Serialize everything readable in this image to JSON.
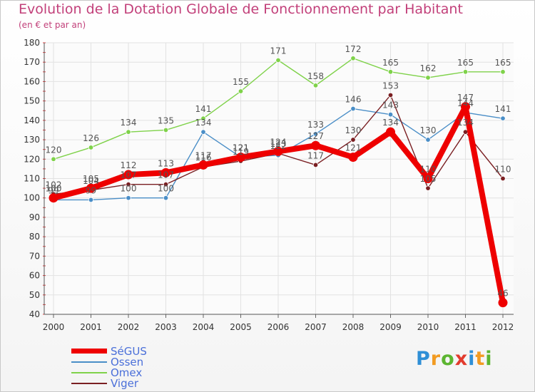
{
  "header": {
    "title": "Evolution de la Dotation Globale de Fonctionnement par Habitant",
    "subtitle": "(en € et par an)"
  },
  "logo": {
    "letters": [
      "P",
      "r",
      "o",
      "x",
      "i",
      "t",
      "i"
    ]
  },
  "chart_data": {
    "type": "line",
    "title": "Evolution de la Dotation Globale de Fonctionnement par Habitant",
    "ylabel": "(en € et par an)",
    "xlabel": "",
    "x": [
      "2000",
      "2001",
      "2002",
      "2003",
      "2004",
      "2005",
      "2006",
      "2007",
      "2008",
      "2009",
      "2010",
      "2011",
      "2012"
    ],
    "ylim": [
      40,
      180
    ],
    "yticks": [
      40,
      50,
      60,
      70,
      80,
      90,
      100,
      110,
      120,
      130,
      140,
      150,
      160,
      170,
      180
    ],
    "grid": true,
    "legend_position": "bottom-left",
    "series": [
      {
        "name": "SéGUS",
        "color": "#ee0000",
        "text_color": "#4a6fd9",
        "values": [
          100,
          105,
          112,
          113,
          117,
          121,
          124,
          127,
          121,
          134,
          110,
          147,
          46
        ],
        "labels": [
          "100",
          "105",
          "112",
          "113",
          "117",
          "121",
          "124",
          "127",
          "121",
          "134",
          "110",
          "147",
          "46"
        ]
      },
      {
        "name": "Ossen",
        "color": "#4a8ec7",
        "text_color": "#4a6fd9",
        "values": [
          99,
          99,
          100,
          100,
          134,
          121,
          122,
          133,
          146,
          143,
          130,
          144,
          141
        ],
        "labels": [
          "99",
          "99",
          "100",
          "100",
          "134",
          "121",
          "122",
          "133",
          "146",
          "143",
          "130",
          "144",
          "141"
        ]
      },
      {
        "name": "Omex",
        "color": "#7fd24a",
        "text_color": "#4a6fd9",
        "values": [
          120,
          126,
          134,
          135,
          141,
          155,
          171,
          158,
          172,
          165,
          162,
          165,
          165
        ],
        "labels": [
          "120",
          "126",
          "134",
          "135",
          "141",
          "155",
          "171",
          "158",
          "172",
          "165",
          "162",
          "165",
          "165"
        ]
      },
      {
        "name": "Viger",
        "color": "#7a1f22",
        "text_color": "#4a6fd9",
        "values": [
          102,
          104,
          107,
          107,
          116,
          119,
          123,
          117,
          130,
          153,
          105,
          134,
          110
        ],
        "labels": [
          "102",
          "104",
          "107",
          "107",
          "116",
          "119",
          "123",
          "117",
          "130",
          "153",
          "105",
          "134",
          "110"
        ]
      }
    ]
  }
}
